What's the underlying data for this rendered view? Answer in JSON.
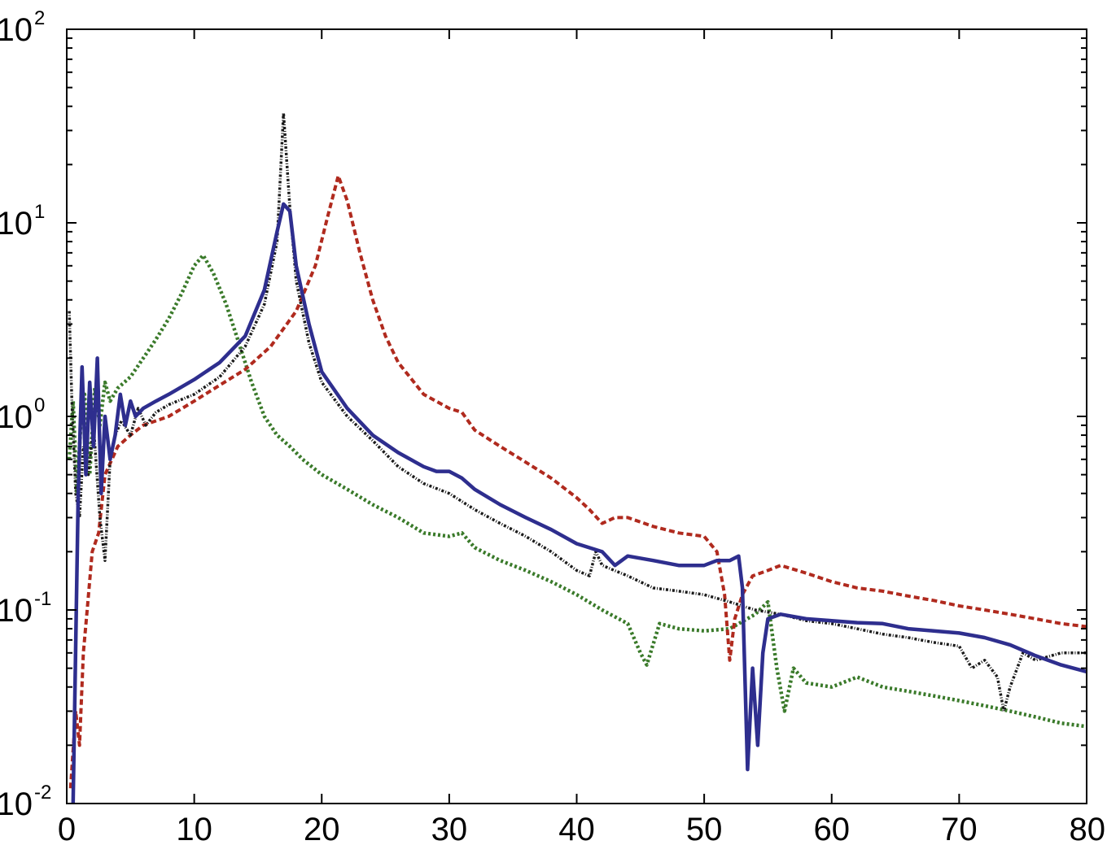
{
  "chart_data": {
    "type": "line",
    "title": "",
    "xlabel": "",
    "ylabel": "",
    "xlim": [
      0,
      80
    ],
    "ylim": [
      0.01,
      100
    ],
    "yscale": "log",
    "grid": false,
    "legend": "none",
    "x_ticks": [
      {
        "value": 0,
        "label": "0"
      },
      {
        "value": 10,
        "label": "10"
      },
      {
        "value": 20,
        "label": "20"
      },
      {
        "value": 30,
        "label": "30"
      },
      {
        "value": 40,
        "label": "40"
      },
      {
        "value": 50,
        "label": "50"
      },
      {
        "value": 60,
        "label": "60"
      },
      {
        "value": 70,
        "label": "70"
      },
      {
        "value": 80,
        "label": "80"
      }
    ],
    "y_ticks": [
      {
        "value": 0.01,
        "base": "10",
        "exp": "-2"
      },
      {
        "value": 0.1,
        "base": "10",
        "exp": "-1"
      },
      {
        "value": 1,
        "base": "10",
        "exp": "0"
      },
      {
        "value": 10,
        "base": "10",
        "exp": "1"
      },
      {
        "value": 100,
        "base": "10",
        "exp": "2"
      }
    ],
    "series": [
      {
        "color": "#3a7a2a",
        "dash": "dotted",
        "x": [
          0.2,
          0.5,
          0.8,
          1.1,
          1.4,
          1.8,
          2.2,
          2.6,
          3.0,
          3.4,
          4.0,
          5.0,
          6.0,
          7.0,
          8.0,
          9.0,
          10.0,
          10.7,
          11.5,
          12.5,
          13.5,
          14.5,
          15.5,
          16.5,
          17.5,
          18.5,
          20.0,
          22.0,
          24.0,
          26.0,
          28.0,
          30.0,
          31.0,
          32.0,
          34.0,
          36.0,
          38.0,
          40.0,
          42.0,
          44.0,
          45.0,
          45.5,
          46.5,
          48.0,
          50.0,
          52.0,
          54.0,
          55.0,
          55.7,
          56.3,
          57.0,
          58.0,
          60.0,
          62.0,
          64.0,
          66.0,
          68.0,
          70.0,
          72.0,
          74.0,
          76.0,
          78.0,
          80.0
        ],
        "y": [
          0.6,
          1.2,
          0.4,
          0.9,
          1.3,
          0.5,
          1.4,
          0.9,
          1.5,
          1.2,
          1.4,
          1.6,
          2.0,
          2.5,
          3.2,
          4.3,
          6.0,
          6.8,
          5.5,
          3.8,
          2.4,
          1.5,
          1.0,
          0.8,
          0.7,
          0.6,
          0.5,
          0.42,
          0.35,
          0.3,
          0.25,
          0.24,
          0.25,
          0.21,
          0.18,
          0.16,
          0.14,
          0.12,
          0.1,
          0.085,
          0.06,
          0.052,
          0.085,
          0.08,
          0.078,
          0.08,
          0.095,
          0.11,
          0.05,
          0.03,
          0.05,
          0.042,
          0.04,
          0.045,
          0.04,
          0.038,
          0.036,
          0.034,
          0.032,
          0.03,
          0.028,
          0.026,
          0.025
        ]
      },
      {
        "color": "#b02a1e",
        "dash": "dashed",
        "x": [
          0.3,
          0.7,
          1.0,
          1.3,
          1.6,
          2.0,
          2.5,
          3.0,
          4.0,
          5.0,
          6.0,
          8.0,
          10.0,
          12.0,
          14.0,
          16.0,
          18.0,
          19.5,
          20.5,
          21.3,
          22.0,
          23.0,
          24.0,
          25.0,
          26.0,
          28.0,
          30.0,
          31.0,
          32.0,
          34.0,
          36.0,
          38.0,
          40.0,
          41.0,
          42.0,
          43.0,
          44.0,
          46.0,
          48.0,
          50.0,
          51.0,
          51.6,
          52.0,
          52.4,
          53.0,
          53.8,
          55.0,
          56.0,
          58.0,
          60.0,
          62.0,
          64.0,
          66.0,
          68.0,
          70.0,
          72.0,
          74.0,
          76.0,
          78.0,
          80.0
        ],
        "y": [
          0.012,
          0.03,
          0.02,
          0.06,
          0.1,
          0.2,
          0.25,
          0.5,
          0.7,
          0.8,
          0.9,
          1.0,
          1.2,
          1.45,
          1.75,
          2.3,
          3.5,
          6.0,
          11.0,
          17.5,
          13.0,
          7.0,
          4.0,
          2.6,
          1.9,
          1.3,
          1.1,
          1.05,
          0.85,
          0.7,
          0.58,
          0.48,
          0.38,
          0.33,
          0.28,
          0.3,
          0.3,
          0.27,
          0.25,
          0.24,
          0.2,
          0.12,
          0.055,
          0.09,
          0.12,
          0.15,
          0.16,
          0.17,
          0.155,
          0.14,
          0.13,
          0.125,
          0.118,
          0.112,
          0.105,
          0.1,
          0.095,
          0.09,
          0.085,
          0.082
        ]
      },
      {
        "color": "#1a1a1a",
        "dash": "dashdot",
        "x": [
          0.2,
          0.4,
          0.7,
          1.0,
          1.3,
          1.7,
          2.1,
          2.6,
          3.0,
          3.4,
          3.8,
          4.3,
          5.0,
          5.6,
          6.2,
          7.0,
          8.0,
          10.0,
          12.0,
          14.0,
          15.5,
          16.5,
          17.0,
          17.5,
          18.0,
          19.0,
          20.0,
          22.0,
          24.0,
          26.0,
          28.0,
          30.0,
          32.0,
          34.0,
          36.0,
          38.0,
          40.0,
          41.0,
          41.5,
          42.0,
          44.0,
          46.0,
          48.0,
          50.0,
          52.0,
          54.0,
          56.0,
          58.0,
          60.0,
          62.0,
          64.0,
          66.0,
          68.0,
          70.0,
          71.0,
          72.0,
          73.0,
          73.5,
          74.0,
          75.0,
          76.0,
          78.0,
          80.0
        ],
        "y": [
          3.5,
          1.2,
          0.4,
          0.3,
          0.7,
          0.5,
          0.9,
          0.3,
          0.18,
          0.6,
          0.8,
          0.95,
          0.8,
          1.1,
          0.9,
          1.05,
          1.15,
          1.3,
          1.6,
          2.3,
          3.8,
          8.0,
          37.0,
          12.0,
          5.0,
          2.4,
          1.5,
          1.0,
          0.75,
          0.55,
          0.45,
          0.4,
          0.33,
          0.28,
          0.24,
          0.2,
          0.16,
          0.15,
          0.2,
          0.17,
          0.15,
          0.13,
          0.125,
          0.12,
          0.11,
          0.1,
          0.095,
          0.088,
          0.085,
          0.08,
          0.075,
          0.072,
          0.068,
          0.065,
          0.05,
          0.055,
          0.045,
          0.03,
          0.04,
          0.06,
          0.055,
          0.06,
          0.06
        ]
      },
      {
        "color": "#2e2e8e",
        "dash": "solid",
        "x": [
          0.5,
          0.9,
          1.2,
          1.5,
          1.8,
          2.1,
          2.4,
          2.7,
          3.0,
          3.4,
          3.8,
          4.2,
          4.6,
          5.0,
          5.4,
          6.0,
          7.0,
          8.0,
          10.0,
          12.0,
          14.0,
          15.5,
          16.5,
          17.0,
          17.5,
          18.0,
          19.0,
          20.0,
          22.0,
          24.0,
          26.0,
          28.0,
          29.0,
          30.0,
          31.0,
          32.0,
          34.0,
          36.0,
          38.0,
          40.0,
          42.0,
          43.0,
          44.0,
          46.0,
          48.0,
          50.0,
          51.0,
          52.0,
          52.7,
          53.0,
          53.4,
          53.8,
          54.2,
          54.6,
          55.0,
          56.0,
          58.0,
          60.0,
          62.0,
          64.0,
          66.0,
          68.0,
          70.0,
          72.0,
          74.0,
          76.0,
          78.0,
          80.0
        ],
        "y": [
          0.01,
          0.4,
          1.8,
          0.5,
          1.5,
          0.7,
          2.0,
          0.4,
          1.0,
          0.6,
          0.8,
          1.3,
          0.9,
          1.2,
          1.0,
          1.1,
          1.2,
          1.3,
          1.55,
          1.9,
          2.6,
          4.5,
          9.0,
          12.5,
          11.5,
          6.0,
          3.0,
          1.7,
          1.1,
          0.8,
          0.65,
          0.55,
          0.52,
          0.52,
          0.48,
          0.42,
          0.35,
          0.3,
          0.26,
          0.22,
          0.2,
          0.17,
          0.19,
          0.18,
          0.17,
          0.17,
          0.18,
          0.18,
          0.19,
          0.13,
          0.015,
          0.05,
          0.02,
          0.06,
          0.09,
          0.095,
          0.09,
          0.088,
          0.086,
          0.085,
          0.08,
          0.078,
          0.076,
          0.072,
          0.066,
          0.058,
          0.052,
          0.048
        ]
      }
    ]
  }
}
